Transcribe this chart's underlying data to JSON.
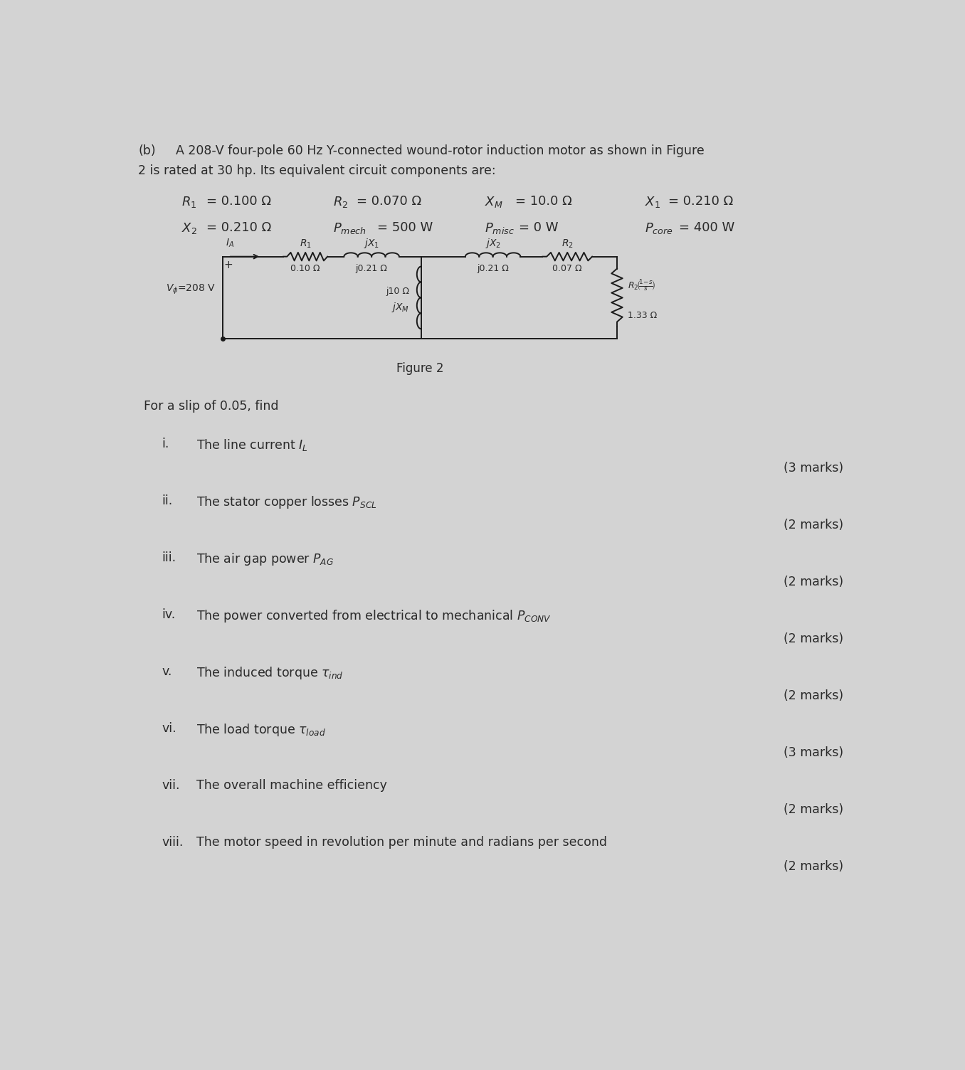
{
  "bg_color": "#d3d3d3",
  "text_color": "#2a2a2a",
  "circuit_color": "#1a1a1a",
  "heading_line1": "A 208-V four-pole 60 Hz Y-connected wound-rotor induction motor as shown in Figure",
  "heading_line2": "2 is rated at 30 hp. Its equivalent circuit components are:",
  "row1": [
    [
      "R_1",
      "= 0.100 Ω",
      1.1
    ],
    [
      "R_2",
      "= 0.070 Ω",
      3.85
    ],
    [
      "X_M",
      "= 10.0 Ω",
      6.6
    ],
    [
      "X_1",
      "= 0.210 Ω",
      9.5
    ]
  ],
  "row2": [
    [
      "X_2",
      "= 0.210 Ω",
      1.1
    ],
    [
      "P_mech",
      "= 500 W",
      3.85
    ],
    [
      "P_misc",
      "= 0 W",
      6.6
    ],
    [
      "P_core",
      "= 400 W",
      9.5
    ]
  ],
  "figure_label": "Figure 2",
  "slip_text": "For a slip of 0.05, find",
  "questions": [
    [
      "i.",
      "The line current $I_L$",
      "(3 marks)"
    ],
    [
      "ii.",
      "The stator copper losses $P_{SCL}$",
      "(2 marks)"
    ],
    [
      "iii.",
      "The air gap power $P_{AG}$",
      "(2 marks)"
    ],
    [
      "iv.",
      "The power converted from electrical to mechanical $P_{CONV}$",
      "(2 marks)"
    ],
    [
      "v.",
      "The induced torque $\\tau_{ind}$",
      "(2 marks)"
    ],
    [
      "vi.",
      "The load torque $\\tau_{load}$",
      "(3 marks)"
    ],
    [
      "vii.",
      "The overall machine efficiency",
      "(2 marks)"
    ],
    [
      "viii.",
      "The motor speed in revolution per minute and radians per second",
      "(2 marks)"
    ]
  ]
}
